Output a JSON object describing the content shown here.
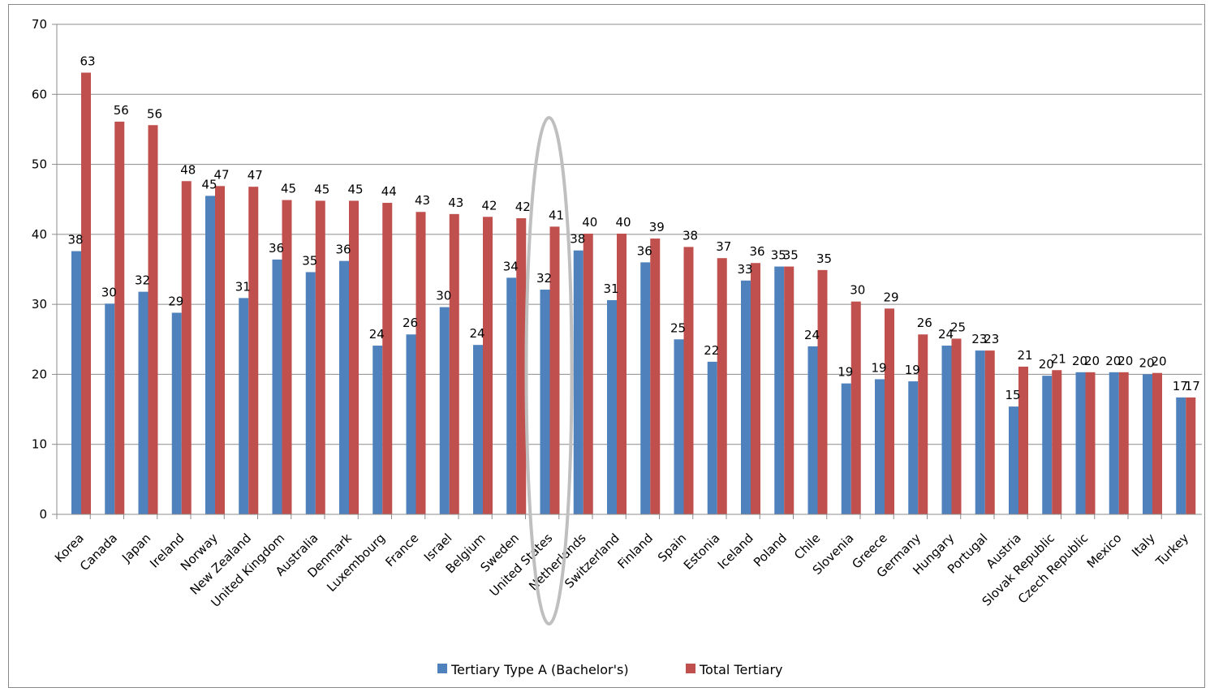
{
  "chart_data": {
    "type": "bar",
    "categories": [
      "Korea",
      "Canada",
      "Japan",
      "Ireland",
      "Norway",
      "New Zealand",
      "United Kingdom",
      "Australia",
      "Denmark",
      "Luxembourg",
      "France",
      "Israel",
      "Belgium",
      "Sweden",
      "United States",
      "Netherlands",
      "Switzerland",
      "Finland",
      "Spain",
      "Estonia",
      "Iceland",
      "Poland",
      "Chile",
      "Slovenia",
      "Greece",
      "Germany",
      "Hungary",
      "Portugal",
      "Austria",
      "Slovak Republic",
      "Czech Republic",
      "Mexico",
      "Italy",
      "Turkey"
    ],
    "series": [
      {
        "name": "Tertiary Type A (Bachelor's)",
        "color": "#4f81bd",
        "values": [
          37.6,
          30.1,
          31.8,
          28.8,
          45.5,
          30.9,
          36.4,
          34.6,
          36.2,
          24.1,
          25.7,
          29.6,
          24.2,
          33.8,
          32.1,
          37.7,
          30.6,
          36.0,
          25.0,
          21.8,
          33.4,
          35.4,
          24.0,
          18.7,
          19.3,
          19.0,
          24.1,
          23.4,
          15.4,
          19.8,
          20.3,
          20.3,
          20.0,
          16.7
        ],
        "labels": [
          "38",
          "30",
          "32",
          "29",
          "45",
          "31",
          "36",
          "35",
          "36",
          "24",
          "26",
          "30",
          "24",
          "34",
          "32",
          "38",
          "31",
          "36",
          "25",
          "22",
          "33",
          "35",
          "24",
          "19",
          "19",
          "19",
          "24",
          "23",
          "15",
          "20",
          "20",
          "20",
          "20",
          "17"
        ]
      },
      {
        "name": "Total Tertiary",
        "color": "#c0504d",
        "values": [
          63.1,
          56.1,
          55.6,
          47.6,
          46.9,
          46.8,
          44.9,
          44.8,
          44.8,
          44.5,
          43.2,
          42.9,
          42.5,
          42.3,
          41.1,
          40.1,
          40.1,
          39.4,
          38.2,
          36.6,
          35.9,
          35.4,
          34.9,
          30.4,
          29.4,
          25.7,
          25.1,
          23.4,
          21.1,
          20.6,
          20.3,
          20.3,
          20.2,
          16.7
        ],
        "labels": [
          "63",
          "56",
          "56",
          "48",
          "47",
          "47",
          "45",
          "45",
          "45",
          "44",
          "43",
          "43",
          "42",
          "42",
          "41",
          "40",
          "40",
          "39",
          "38",
          "37",
          "36",
          "35",
          "35",
          "30",
          "29",
          "26",
          "25",
          "23",
          "21",
          "21",
          "20",
          "20",
          "20",
          "17"
        ]
      }
    ],
    "y_ticks": [
      "0",
      "10",
      "20",
      "30",
      "40",
      "50",
      "60",
      "70"
    ],
    "ylim": [
      0,
      70
    ],
    "grid": true,
    "legend_position": "bottom",
    "highlight": "United States",
    "title": "",
    "xlabel": "",
    "ylabel": ""
  }
}
